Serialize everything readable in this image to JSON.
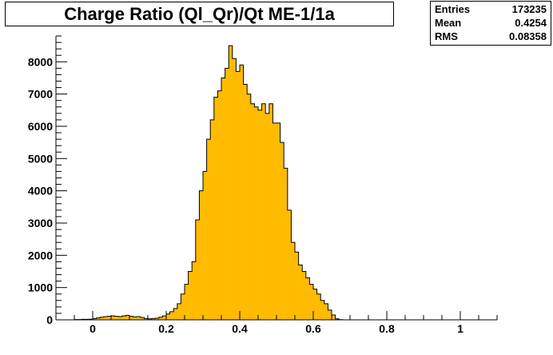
{
  "chart_data": {
    "type": "bar",
    "title": "Charge Ratio (Ql_Qr)/Qt ME-1/1a",
    "xlabel": "",
    "ylabel": "",
    "xlim": [
      -0.1,
      1.1
    ],
    "ylim": [
      0,
      8800
    ],
    "bin_width": 0.01,
    "fill_color": "#ffbb00",
    "line_color": "#000000",
    "grid": false,
    "stats_position": "top-right",
    "xticks": [
      0,
      0.2,
      0.4,
      0.6,
      0.8,
      1
    ],
    "xtick_labels": [
      "0",
      "0.2",
      "0.4",
      "0.6",
      "0.8",
      "1"
    ],
    "yticks": [
      0,
      1000,
      2000,
      3000,
      4000,
      5000,
      6000,
      7000,
      8000
    ],
    "ytick_labels": [
      "0",
      "1000",
      "2000",
      "3000",
      "4000",
      "5000",
      "6000",
      "7000",
      "8000"
    ],
    "bin_low_edges": [
      -0.05,
      -0.04,
      -0.03,
      -0.02,
      -0.01,
      0,
      0.01,
      0.02,
      0.03,
      0.04,
      0.05,
      0.06,
      0.07,
      0.08,
      0.09,
      0.1,
      0.11,
      0.12,
      0.13,
      0.14,
      0.15,
      0.16,
      0.17,
      0.18,
      0.19,
      0.2,
      0.21,
      0.22,
      0.23,
      0.24,
      0.25,
      0.26,
      0.27,
      0.28,
      0.29,
      0.3,
      0.31,
      0.32,
      0.33,
      0.34,
      0.35,
      0.36,
      0.37,
      0.38,
      0.39,
      0.4,
      0.41,
      0.42,
      0.43,
      0.44,
      0.45,
      0.46,
      0.47,
      0.48,
      0.49,
      0.5,
      0.51,
      0.52,
      0.53,
      0.54,
      0.55,
      0.56,
      0.57,
      0.58,
      0.59,
      0.6,
      0.61,
      0.62,
      0.63,
      0.64,
      0.65,
      0.66,
      0.67
    ],
    "values": [
      10,
      10,
      15,
      15,
      20,
      40,
      60,
      80,
      100,
      110,
      120,
      110,
      100,
      120,
      140,
      110,
      90,
      100,
      70,
      40,
      30,
      40,
      50,
      80,
      120,
      180,
      250,
      350,
      500,
      800,
      1100,
      1500,
      1800,
      3100,
      4000,
      4600,
      5600,
      6200,
      6900,
      7100,
      7500,
      7800,
      8500,
      8100,
      7700,
      7900,
      7300,
      7000,
      6700,
      6600,
      6500,
      6700,
      6400,
      6700,
      6100,
      6100,
      5500,
      4700,
      3400,
      2400,
      2100,
      1700,
      1500,
      1300,
      1100,
      950,
      800,
      600,
      500,
      300,
      150,
      30,
      5
    ],
    "stats": {
      "entries_label": "Entries",
      "entries": "173235",
      "mean_label": "Mean",
      "mean": "0.4254",
      "rms_label": "RMS",
      "rms": "0.08358"
    }
  }
}
